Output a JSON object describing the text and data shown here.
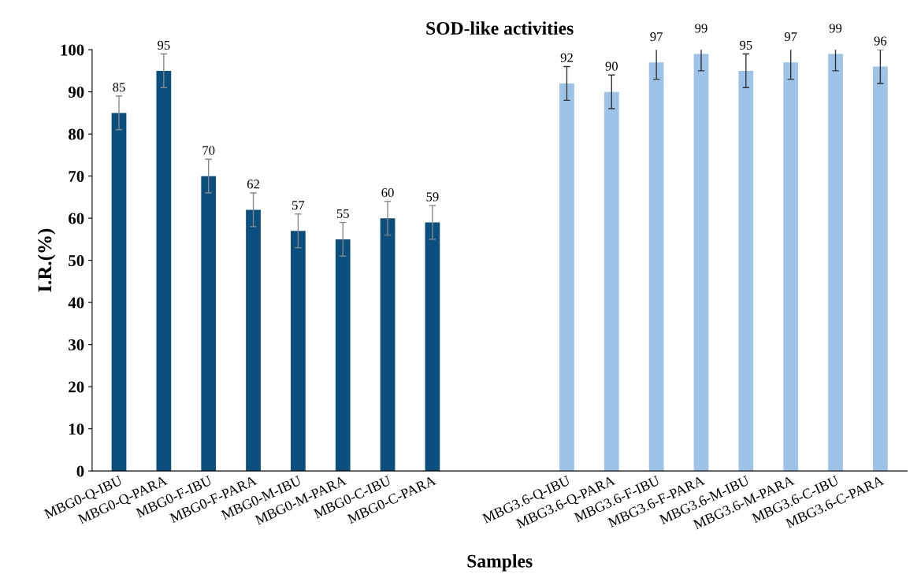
{
  "chart_data": {
    "type": "bar",
    "title": "SOD-like activities",
    "xlabel": "Samples",
    "ylabel": "I.R.(%)",
    "categories": [
      "MBG0-Q-IBU",
      "MBG0-Q-PARA",
      "MBG0-F-IBU",
      "MBG0-F-PARA",
      "MBG0-M-IBU",
      "MBG0-M-PARA",
      "MBG0-C-IBU",
      "MBG0-C-PARA",
      null,
      null,
      "MBG3.6-Q-IBU",
      "MBG3.6-Q-PARA",
      "MBG3.6-F-IBU",
      "MBG3.6-F-PARA",
      "MBG3.6-M-IBU",
      "MBG3.6-M-PARA",
      "MBG3.6-C-IBU",
      "MBG3.6-C-PARA"
    ],
    "values": [
      85,
      95,
      70,
      62,
      57,
      55,
      60,
      59,
      null,
      null,
      92,
      90,
      97,
      99,
      95,
      97,
      99,
      96
    ],
    "errors": [
      4,
      4,
      4,
      4,
      4,
      4,
      4,
      4,
      null,
      null,
      4,
      4,
      4,
      4,
      4,
      4,
      4,
      4
    ],
    "colors": [
      "#0b4f7f",
      "#0b4f7f",
      "#0b4f7f",
      "#0b4f7f",
      "#0b4f7f",
      "#0b4f7f",
      "#0b4f7f",
      "#0b4f7f",
      null,
      null,
      "#9dc3e8",
      "#9dc3e8",
      "#9dc3e8",
      "#9dc3e8",
      "#9dc3e8",
      "#9dc3e8",
      "#9dc3e8",
      "#9dc3e8"
    ],
    "ylim": [
      0,
      100
    ],
    "yticks": [
      0,
      10,
      20,
      30,
      40,
      50,
      60,
      70,
      80,
      90,
      100
    ],
    "data_labels": true,
    "grid": false
  }
}
